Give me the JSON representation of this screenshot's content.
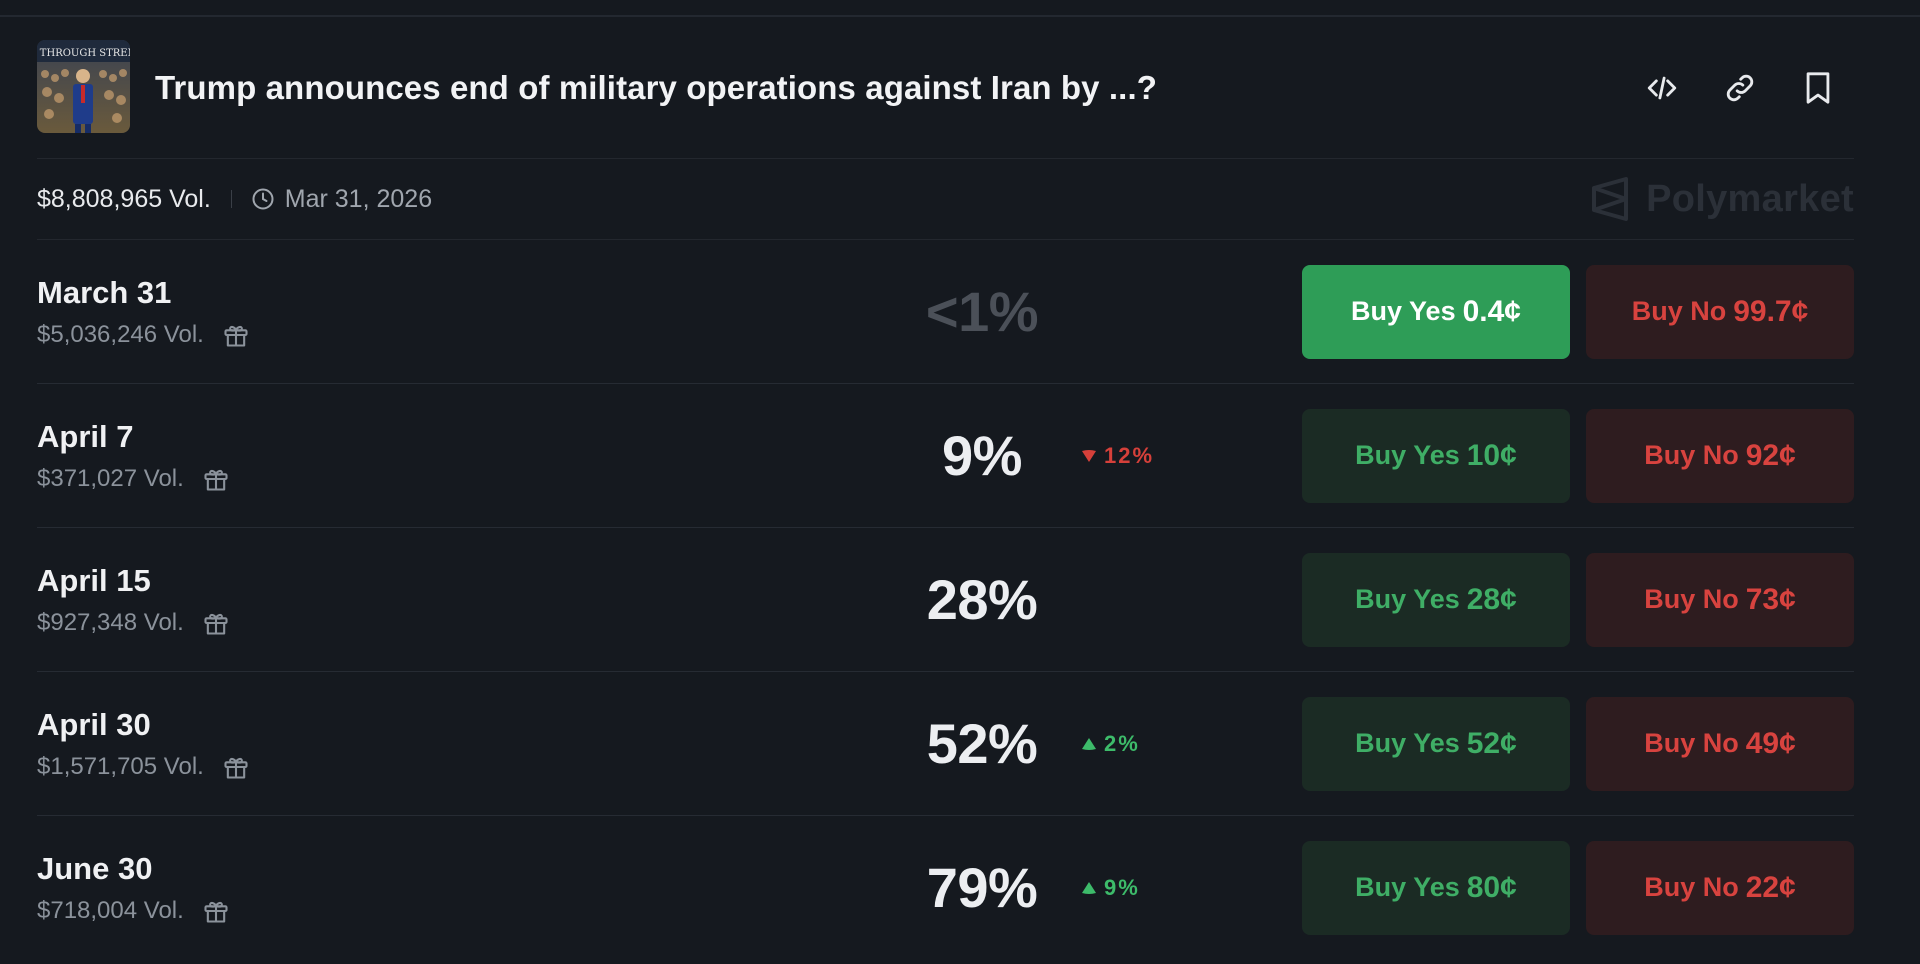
{
  "market": {
    "title": "Trump announces end of military operations against Iran by ...?",
    "total_volume": "$8,808,965 Vol.",
    "end_date": "Mar 31, 2026",
    "brand": "Polymarket",
    "thumbnail_caption": "CE THROUGH STRENG"
  },
  "header_icons": [
    "embed-code-icon",
    "link-icon",
    "bookmark-icon"
  ],
  "colors": {
    "background": "#15191f",
    "yes_active": "#2e9d57",
    "yes": "#3fae66",
    "no": "#d8433f",
    "up": "#3dbb6a",
    "down": "#d6403a"
  },
  "outcomes": [
    {
      "label": "March 31",
      "volume": "$5,036,246 Vol.",
      "percent": "<1%",
      "delta": "",
      "delta_dir": "",
      "yes_label": "Buy Yes",
      "yes_price": "0.4¢",
      "no_label": "Buy No",
      "no_price": "99.7¢"
    },
    {
      "label": "April 7",
      "volume": "$371,027 Vol.",
      "percent": "9%",
      "delta": "12%",
      "delta_dir": "down",
      "yes_label": "Buy Yes",
      "yes_price": "10¢",
      "no_label": "Buy No",
      "no_price": "92¢"
    },
    {
      "label": "April 15",
      "volume": "$927,348 Vol.",
      "percent": "28%",
      "delta": "",
      "delta_dir": "",
      "yes_label": "Buy Yes",
      "yes_price": "28¢",
      "no_label": "Buy No",
      "no_price": "73¢"
    },
    {
      "label": "April 30",
      "volume": "$1,571,705 Vol.",
      "percent": "52%",
      "delta": "2%",
      "delta_dir": "up",
      "yes_label": "Buy Yes",
      "yes_price": "52¢",
      "no_label": "Buy No",
      "no_price": "49¢"
    },
    {
      "label": "June 30",
      "volume": "$718,004 Vol.",
      "percent": "79%",
      "delta": "9%",
      "delta_dir": "up",
      "yes_label": "Buy Yes",
      "yes_price": "80¢",
      "no_label": "Buy No",
      "no_price": "22¢"
    }
  ]
}
